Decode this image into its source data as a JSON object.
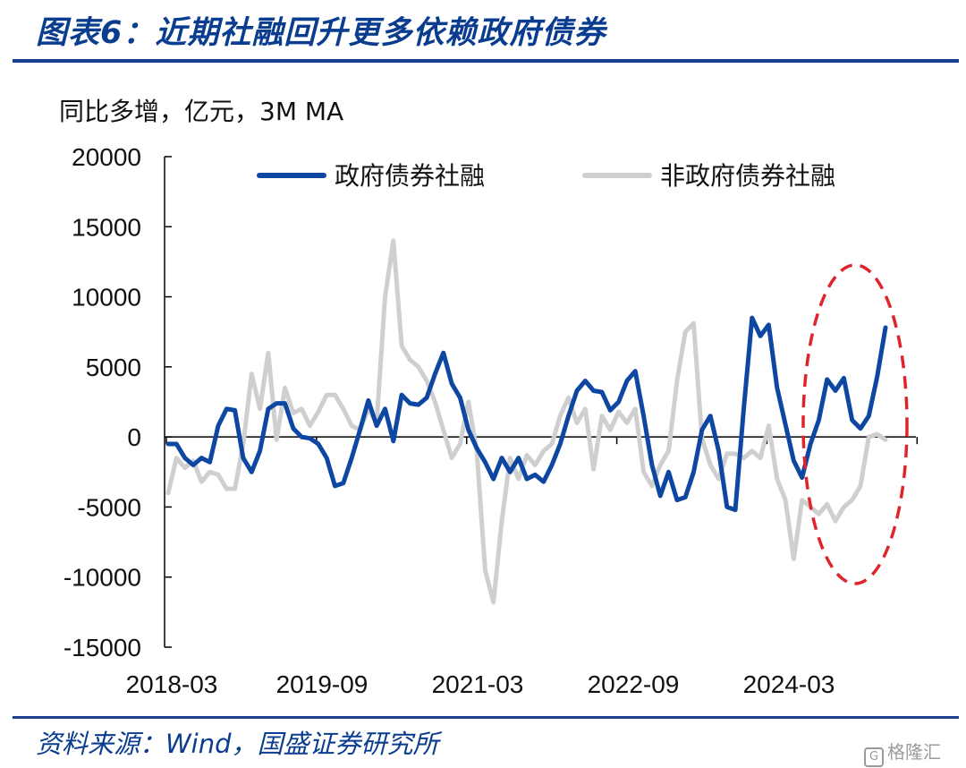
{
  "header": {
    "title": "图表6：近期社融回升更多依赖政府债券"
  },
  "footer": {
    "source": "资料来源：Wind，国盛证券研究所",
    "watermark_text": "格隆汇",
    "watermark_icon": "g-logo-icon"
  },
  "colors": {
    "gov": "#0d47a1",
    "nongov": "#cfcfcf",
    "highlight": "#e0242b",
    "accent": "#1a3f8f"
  },
  "chart_data": {
    "type": "line",
    "unit_label": "同比多增，亿元，3M MA",
    "ylim": [
      -15000,
      20000
    ],
    "yticks": [
      20000,
      15000,
      10000,
      5000,
      0,
      -5000,
      -10000,
      -15000
    ],
    "ytick_labels": [
      "20000",
      "15000",
      "10000",
      "5000",
      "0",
      "-5000",
      "-10000",
      "-15000"
    ],
    "xticks": [
      "2018-03",
      "2019-09",
      "2021-03",
      "2022-09",
      "2024-03"
    ],
    "legend": "top",
    "series": [
      {
        "name": "政府债券社融",
        "values": [
          -500,
          -500,
          -1500,
          -2000,
          -1500,
          -1800,
          800,
          2000,
          1900,
          -1500,
          -2500,
          -1000,
          2000,
          2400,
          2400,
          600,
          0,
          -100,
          -500,
          -1500,
          -3500,
          -3300,
          -1500,
          500,
          2600,
          800,
          2000,
          -300,
          3000,
          2400,
          2300,
          2800,
          4500,
          6000,
          3800,
          2800,
          500,
          -800,
          -1800,
          -3000,
          -1500,
          -2500,
          -1500,
          -3000,
          -2700,
          -3200,
          -2000,
          -500,
          1500,
          3300,
          4000,
          3300,
          3200,
          1900,
          2500,
          4000,
          4700,
          1500,
          -2000,
          -4200,
          -2500,
          -4500,
          -4300,
          -2500,
          500,
          1500,
          -1000,
          -5000,
          -5200,
          2000,
          8500,
          7200,
          8000,
          3500,
          900,
          -1700,
          -2900,
          -500,
          1200,
          4100,
          3300,
          4200,
          1200,
          600,
          1500,
          4300,
          7800
        ]
      },
      {
        "name": "非政府债券社融",
        "values": [
          -4000,
          -1500,
          -2200,
          -1700,
          -3200,
          -2500,
          -2700,
          -3700,
          -3700,
          -500,
          4500,
          2000,
          6000,
          -200,
          3500,
          1700,
          2000,
          800,
          1800,
          3000,
          3000,
          2000,
          800,
          500,
          2000,
          1000,
          10000,
          14000,
          6500,
          5500,
          5000,
          4000,
          2500,
          500,
          -1500,
          -500,
          2500,
          -1000,
          -9500,
          -11800,
          -6000,
          -1500,
          -3000,
          -1300,
          -2000,
          -1000,
          -500,
          1500,
          2800,
          1000,
          2000,
          -2300,
          1500,
          500,
          1800,
          1000,
          2000,
          -2500,
          -3500,
          -2000,
          -1000,
          4000,
          7500,
          8100,
          -100,
          -2000,
          -3000,
          -1200,
          -1200,
          -1500,
          -1000,
          -1500,
          800,
          -3000,
          -4500,
          -8700,
          -4500,
          -5000,
          -5500,
          -4800,
          -6000,
          -5000,
          -4500,
          -3500,
          0,
          200,
          -200
        ]
      }
    ]
  }
}
